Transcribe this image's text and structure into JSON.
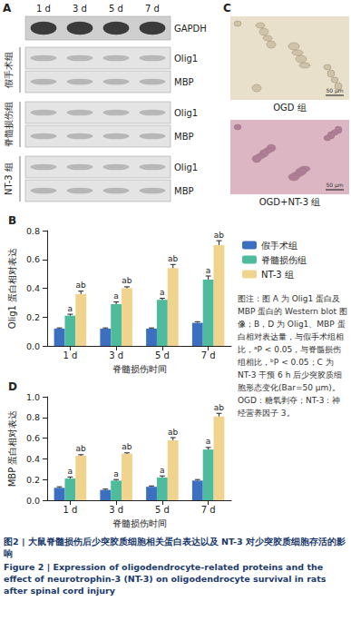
{
  "panel_a": {
    "label": "A",
    "lanes": [
      "1 d",
      "3 d",
      "5 d",
      "7 d"
    ],
    "loading": "GAPDH",
    "groups": [
      {
        "name": "假手术组",
        "proteins": [
          "Olig1",
          "MBP"
        ]
      },
      {
        "name": "脊髓损伤组",
        "proteins": [
          "Olig1",
          "MBP"
        ]
      },
      {
        "name": "NT-3 组",
        "proteins": [
          "Olig1",
          "MBP"
        ]
      }
    ]
  },
  "panel_c": {
    "label": "C",
    "images": [
      {
        "label": "OGD 组",
        "scale_bar": "50 μm"
      },
      {
        "label": "OGD+NT-3 组",
        "scale_bar": "50 μm"
      }
    ]
  },
  "chart_data": [
    {
      "type": "bar",
      "title": "B",
      "x_label": "脊髓损伤时间",
      "y_label": "Olig1 蛋白相对表达",
      "categories": [
        "1 d",
        "3 d",
        "5 d",
        "7 d"
      ],
      "ylim": [
        0,
        0.8
      ],
      "yticks": [
        {
          "value": 0,
          "label": "0.0"
        },
        0.2,
        0.4,
        0.6,
        0.8
      ],
      "grid": false,
      "legend": "right",
      "series": [
        {
          "name": "假手术组",
          "color": "#3d6fc0",
          "values": [
            0.12,
            0.12,
            0.12,
            0.16
          ],
          "errors": [
            0.005,
            0.005,
            0.005,
            0.008
          ]
        },
        {
          "name": "脊髓损伤组",
          "color": "#4dbb9c",
          "values": [
            0.21,
            0.29,
            0.32,
            0.46
          ],
          "errors": [
            0.01,
            0.015,
            0.01,
            0.025
          ],
          "marks": [
            "a",
            "a",
            "a",
            "a"
          ]
        },
        {
          "name": "NT-3 组",
          "color": "#f0d48e",
          "values": [
            0.36,
            0.4,
            0.54,
            0.7
          ],
          "errors": [
            0.02,
            0.01,
            0.025,
            0.03
          ],
          "marks": [
            "ab",
            "ab",
            "ab",
            "ab"
          ]
        }
      ]
    },
    {
      "type": "bar",
      "title": "D",
      "x_label": "脊髓损伤时间",
      "y_label": "MBP 蛋白相对表达",
      "categories": [
        "1 d",
        "3 d",
        "5 d",
        "7 d"
      ],
      "ylim": [
        0,
        1.0
      ],
      "yticks": [
        {
          "value": 0,
          "label": "0.0"
        },
        0.2,
        0.4,
        0.6,
        0.8,
        {
          "value": 1.0,
          "label": "1.0"
        }
      ],
      "grid": false,
      "series": [
        {
          "name": "假手术组",
          "color": "#3d6fc0",
          "values": [
            0.12,
            0.1,
            0.13,
            0.19
          ],
          "errors": [
            0.01,
            0.008,
            0.008,
            0.01
          ]
        },
        {
          "name": "脊髓损伤组",
          "color": "#4dbb9c",
          "values": [
            0.21,
            0.19,
            0.22,
            0.49
          ],
          "errors": [
            0.015,
            0.01,
            0.015,
            0.02
          ],
          "marks": [
            "a",
            "a",
            "a",
            "a"
          ]
        },
        {
          "name": "NT-3 组",
          "color": "#f0d48e",
          "values": [
            0.43,
            0.45,
            0.58,
            0.81
          ],
          "errors": [
            0.01,
            0.008,
            0.025,
            0.03
          ],
          "marks": [
            "ab",
            "ab",
            "ab",
            "ab"
          ]
        }
      ]
    }
  ],
  "note": "图注：图 A 为 Olig1 蛋白及 MBP 蛋白的 Western blot 图像；B，D 为 Olig1、MBP 蛋白相对表达量，与假手术组相比，ᵃP < 0.05，与脊髓损伤组相比，ᵇP < 0.05；C 为 NT-3 干预 6 h 后少突胶质细胞形态变化(Bar=50 μm)。OGD：糖氧剥夺；NT-3：神经营养因子 3。",
  "caption": {
    "cn": "图2 | 大鼠脊髓损伤后少突胶质细胞相关蛋白表达以及 NT-3 对少突胶质细胞存活的影响",
    "en": "Figure 2 | Expression of oligodendrocyte-related proteins and the effect of neurotrophin-3 (NT-3) on oligodendrocyte survival in rats after spinal cord injury"
  }
}
